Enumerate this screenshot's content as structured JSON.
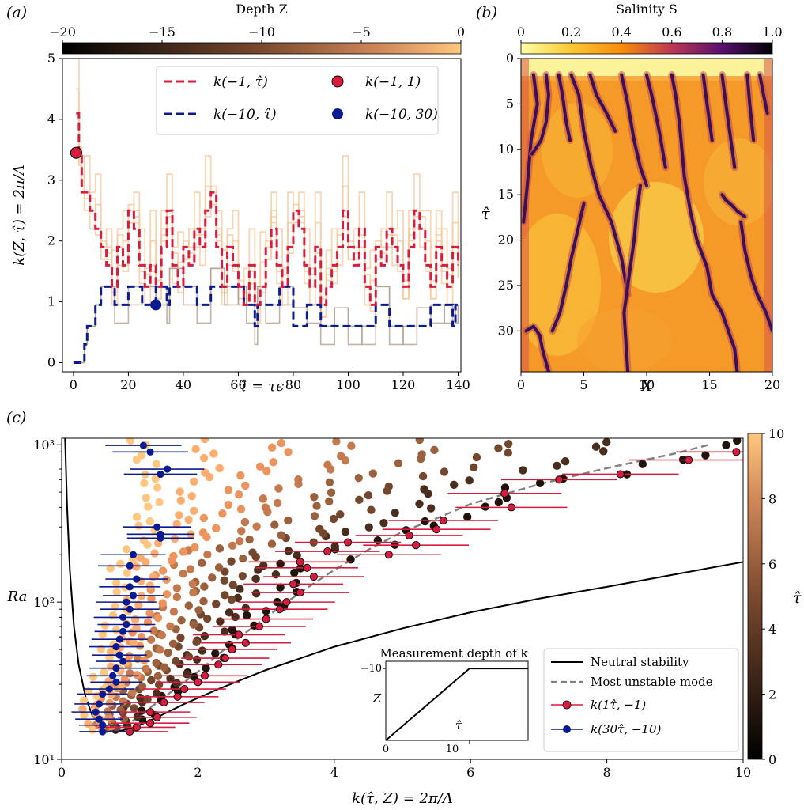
{
  "figure": {
    "panel_labels": {
      "a": "(a)",
      "b": "(b)",
      "c": "(c)"
    }
  },
  "colors": {
    "red": "#d81b3f",
    "blue": "#0b1b8f",
    "grey_dash": "#808080",
    "copper_dark": "#000000",
    "copper_light": "#ffc77f",
    "pale": "#f5c89a",
    "heat_light": "#fcffa4",
    "heat_mid1": "#f98c0a",
    "heat_mid2": "#bc3754",
    "heat_mid3": "#57106e",
    "heat_dark": "#000004"
  },
  "chart_data": [
    {
      "type": "line",
      "panel": "(a)",
      "title": "",
      "xlabel": "τ̂ = τϵ",
      "ylabel": "k(Z, τ̂) = 2π/Λ",
      "xlim": [
        -4,
        141
      ],
      "ylim": [
        -0.15,
        5
      ],
      "xticks": [
        0,
        20,
        40,
        60,
        80,
        100,
        120,
        140
      ],
      "yticks": [
        0,
        1,
        2,
        3,
        4,
        5
      ],
      "colorbar": {
        "label": "Depth Z",
        "ticks": [
          -20,
          -15,
          -10,
          -5,
          0
        ],
        "range": [
          -20,
          0
        ]
      },
      "legend": [
        {
          "label": "k(−1, τ̂)",
          "style": "red-dashed"
        },
        {
          "label": "k(−10, τ̂)",
          "style": "blue-dashed"
        },
        {
          "label": "k(−1, 1)",
          "style": "red-marker"
        },
        {
          "label": "k(−10, 30)",
          "style": "blue-marker"
        }
      ],
      "series": [
        {
          "name": "k(−1, τ̂)",
          "x": [
            1,
            2,
            3,
            4,
            6,
            8,
            10,
            12,
            14,
            16,
            18,
            20,
            22,
            24,
            26,
            28,
            30,
            32,
            34,
            36,
            38,
            40,
            42,
            44,
            46,
            48,
            50,
            52,
            54,
            56,
            58,
            60,
            62,
            64,
            66,
            68,
            70,
            72,
            74,
            76,
            78,
            80,
            82,
            84,
            86,
            88,
            90,
            92,
            94,
            96,
            98,
            100,
            102,
            104,
            106,
            108,
            110,
            112,
            114,
            116,
            118,
            120,
            122,
            124,
            126,
            128,
            130,
            132,
            134,
            136,
            138,
            140
          ],
          "y": [
            4.1,
            3.45,
            2.8,
            2.8,
            2.5,
            2.2,
            1.9,
            1.6,
            1.25,
            1.9,
            1.6,
            2.5,
            2.2,
            1.6,
            1.25,
            1.6,
            1.25,
            1.9,
            2.5,
            1.6,
            1.25,
            1.9,
            1.6,
            2.2,
            1.9,
            2.5,
            2.8,
            1.9,
            1.25,
            1.9,
            1.6,
            1.25,
            0.95,
            1.6,
            0.95,
            1.25,
            1.9,
            2.2,
            1.6,
            1.25,
            1.9,
            2.5,
            2.2,
            1.6,
            1.25,
            1.9,
            0.95,
            1.25,
            1.6,
            1.9,
            2.5,
            1.9,
            1.6,
            2.2,
            1.25,
            0.95,
            1.9,
            1.6,
            2.2,
            1.9,
            1.6,
            1.25,
            1.9,
            2.5,
            2.2,
            1.6,
            1.25,
            1.9,
            1.6,
            1.25,
            1.9,
            1.6
          ]
        },
        {
          "name": "k(−10, τ̂)",
          "x": [
            0,
            3,
            4,
            5,
            7,
            8,
            9,
            10,
            11,
            15,
            20,
            25,
            30,
            34,
            35,
            40,
            45,
            50,
            55,
            60,
            62,
            63,
            66,
            67,
            70,
            75,
            80,
            85,
            90,
            95,
            100,
            105,
            110,
            115,
            120,
            125,
            130,
            135,
            138,
            139,
            140
          ],
          "y": [
            0,
            0,
            0.3,
            0.6,
            0.6,
            0.95,
            0.95,
            1.25,
            1.25,
            0.95,
            1.25,
            0.95,
            1.25,
            0.95,
            1.25,
            1.25,
            0.95,
            1.25,
            1.25,
            1.25,
            0.95,
            0.95,
            0.6,
            0.95,
            0.95,
            1.25,
            0.6,
            0.95,
            0.6,
            0.6,
            0.6,
            0.6,
            0.95,
            0.6,
            0.6,
            0.6,
            0.95,
            0.95,
            0.6,
            0.95,
            0.95
          ]
        }
      ],
      "markers": [
        {
          "name": "k(−1, 1)",
          "x": 1,
          "y": 3.45
        },
        {
          "name": "k(−10, 30)",
          "x": 30,
          "y": 0.95
        }
      ]
    },
    {
      "type": "heatmap",
      "panel": "(b)",
      "title": "",
      "xlabel": "X",
      "ylabel": "τ̂",
      "xlim": [
        0,
        20
      ],
      "ylim": [
        0,
        34.5
      ],
      "xticks": [
        0,
        5,
        10,
        15,
        20
      ],
      "yticks": [
        0,
        5,
        10,
        15,
        20,
        25,
        30
      ],
      "colorbar": {
        "label": "Salinity S",
        "ticks": [
          "0",
          "0.2",
          "0.4",
          "0.6",
          "0.8",
          "1.0"
        ],
        "range": [
          0,
          1
        ]
      },
      "fingers": [
        {
          "x": [
            1.0,
            1.3,
            0.8,
            0.5,
            0.2
          ],
          "y": [
            1.8,
            5,
            9,
            14,
            18
          ]
        },
        {
          "x": [
            2.0,
            2.2,
            2.0,
            1.6,
            0.9
          ],
          "y": [
            1.8,
            4,
            7,
            9,
            10.5
          ]
        },
        {
          "x": [
            3.0,
            3.3,
            3.6,
            3.9
          ],
          "y": [
            1.8,
            4,
            7,
            9
          ]
        },
        {
          "x": [
            4.0,
            4.6,
            5.0,
            5.6,
            6.2,
            7.2,
            8.0,
            8.5
          ],
          "y": [
            1.8,
            4,
            8,
            12,
            15,
            18,
            22,
            26
          ]
        },
        {
          "x": [
            5.5,
            6.0,
            6.8,
            7.5
          ],
          "y": [
            1.8,
            4,
            6,
            8
          ]
        },
        {
          "x": [
            8.0,
            8.5,
            9.0,
            9.5,
            10.0
          ],
          "y": [
            1.8,
            5,
            9,
            12,
            14
          ]
        },
        {
          "x": [
            10.0,
            10.4,
            11.0,
            11.5
          ],
          "y": [
            1.8,
            4,
            8,
            12
          ]
        },
        {
          "x": [
            12.0,
            12.3,
            12.6,
            12.8,
            13.0,
            13.5,
            14.0,
            14.8,
            15.2,
            16.0,
            16.5,
            17.0,
            17.2
          ],
          "y": [
            1.8,
            4,
            7,
            10,
            13,
            17,
            20,
            23,
            26,
            28,
            30,
            32,
            34.5
          ]
        },
        {
          "x": [
            14.5,
            14.8,
            15.2
          ],
          "y": [
            1.8,
            5,
            9
          ]
        },
        {
          "x": [
            16.0,
            16.3,
            16.7,
            17.0
          ],
          "y": [
            1.8,
            5,
            9,
            12
          ]
        },
        {
          "x": [
            18.0,
            18.2,
            18.5
          ],
          "y": [
            1.8,
            5,
            9
          ]
        },
        {
          "x": [
            19.0,
            19.3,
            19.6
          ],
          "y": [
            1.8,
            4,
            6
          ]
        },
        {
          "x": [
            9.5,
            9.2,
            9.0,
            8.8,
            8.5,
            8.2,
            8.5
          ],
          "y": [
            14,
            17,
            20,
            22,
            25,
            28,
            34.5
          ]
        },
        {
          "x": [
            5.0,
            4.5,
            4.0,
            3.6,
            3.1,
            2.5
          ],
          "y": [
            16,
            19,
            22,
            25,
            28,
            30
          ]
        },
        {
          "x": [
            0.4,
            1.0,
            1.5,
            1.7,
            2.2
          ],
          "y": [
            30,
            29.5,
            30.5,
            32,
            34.5
          ]
        },
        {
          "x": [
            17.5,
            17.8,
            18.3,
            18.8,
            19.5,
            20.0
          ],
          "y": [
            18,
            21,
            24,
            26,
            28,
            30
          ]
        },
        {
          "x": [
            16.0,
            16.3,
            16.8,
            17.2,
            17.8
          ],
          "y": [
            15,
            15.6,
            16.2,
            16.8,
            17.4
          ]
        }
      ]
    },
    {
      "type": "scatter",
      "panel": "(c)",
      "title": "",
      "xlabel": "k(τ̂, Z) = 2π/Λ",
      "ylabel": "Ra",
      "xlim": [
        0,
        10
      ],
      "ylim": [
        10,
        1100
      ],
      "yscale": "log",
      "xticks": [
        0,
        2,
        4,
        6,
        8,
        10
      ],
      "yticks": [
        10,
        100,
        1000
      ],
      "ytick_labels": [
        "10¹",
        "10²",
        "10³"
      ],
      "colorbar": {
        "label": "τ̂",
        "ticks": [
          0,
          2,
          4,
          6,
          8,
          10
        ],
        "range": [
          0,
          10
        ]
      },
      "legend": [
        {
          "label": "Neutral stability",
          "style": "black-solid"
        },
        {
          "label": "Most unstable mode",
          "style": "grey-dashed"
        },
        {
          "label": "k(1τ̂, −1)",
          "style": "red-errorbar"
        },
        {
          "label": "k(30τ̂, −10)",
          "style": "blue-errorbar"
        }
      ],
      "neutral_stability": {
        "name": "Neutral stability",
        "x": [
          0.05,
          0.08,
          0.12,
          0.18,
          0.25,
          0.35,
          0.45,
          0.6,
          0.75,
          0.9,
          1.1,
          1.4,
          1.8,
          2.3,
          3.0,
          4.0,
          5.0,
          6.0,
          7.0,
          8.0,
          9.0,
          10.0
        ],
        "y": [
          1100,
          400,
          160,
          70,
          40,
          25,
          19,
          16,
          15,
          15.3,
          16.2,
          18.5,
          22.5,
          28,
          37,
          52,
          68,
          86,
          105,
          125,
          150,
          180
        ]
      },
      "most_unstable_mode": {
        "name": "Most unstable mode",
        "x": [
          0.75,
          1.0,
          1.4,
          2.0,
          2.5,
          3.0,
          3.5,
          4.0,
          4.5,
          5.0,
          5.5,
          6.0,
          7.0,
          8.0,
          9.0,
          9.5
        ],
        "y": [
          15,
          17,
          23,
          36,
          55,
          80,
          115,
          160,
          215,
          280,
          340,
          420,
          560,
          710,
          880,
          1000
        ]
      },
      "measurement_red": {
        "name": "k(1τ̂, −1)",
        "points": [
          [
            1.0,
            15
          ],
          [
            1.1,
            16
          ],
          [
            1.3,
            17
          ],
          [
            1.4,
            18.5
          ],
          [
            1.3,
            20
          ],
          [
            1.5,
            23
          ],
          [
            1.7,
            25
          ],
          [
            1.8,
            28
          ],
          [
            2.0,
            31
          ],
          [
            2.1,
            34
          ],
          [
            2.3,
            40
          ],
          [
            2.4,
            44
          ],
          [
            2.5,
            50
          ],
          [
            2.7,
            55
          ],
          [
            2.6,
            62
          ],
          [
            2.9,
            70
          ],
          [
            3.0,
            78
          ],
          [
            3.2,
            90
          ],
          [
            3.3,
            100
          ],
          [
            3.5,
            115
          ],
          [
            3.4,
            130
          ],
          [
            3.7,
            145
          ],
          [
            3.6,
            165
          ],
          [
            3.5,
            180
          ],
          [
            3.9,
            210
          ],
          [
            4.2,
            240
          ],
          [
            4.8,
            200
          ],
          [
            5.2,
            230
          ],
          [
            5.1,
            265
          ],
          [
            5.5,
            290
          ],
          [
            5.6,
            330
          ],
          [
            6.6,
            400
          ],
          [
            6.5,
            490
          ],
          [
            7.3,
            600
          ],
          [
            8.2,
            650
          ],
          [
            9.2,
            800
          ],
          [
            9.9,
            900
          ]
        ]
      },
      "measurement_blue": {
        "name": "k(30τ̂, −10)",
        "points": [
          [
            0.6,
            15
          ],
          [
            0.6,
            16.5
          ],
          [
            0.55,
            18
          ],
          [
            0.5,
            20
          ],
          [
            0.55,
            22.5
          ],
          [
            0.6,
            26
          ],
          [
            0.7,
            28
          ],
          [
            0.8,
            31
          ],
          [
            0.75,
            34
          ],
          [
            0.8,
            38
          ],
          [
            0.9,
            42
          ],
          [
            0.85,
            46
          ],
          [
            0.8,
            52
          ],
          [
            0.85,
            58
          ],
          [
            0.9,
            65
          ],
          [
            0.95,
            72
          ],
          [
            0.9,
            80
          ],
          [
            1.0,
            90
          ],
          [
            0.95,
            100
          ],
          [
            1.05,
            110
          ],
          [
            1.0,
            125
          ],
          [
            1.1,
            140
          ],
          [
            1.0,
            170
          ],
          [
            1.05,
            200
          ],
          [
            1.45,
            255
          ],
          [
            1.45,
            270
          ],
          [
            1.4,
            300
          ],
          [
            1.45,
            650
          ],
          [
            1.55,
            700
          ],
          [
            1.3,
            900
          ],
          [
            1.2,
            990
          ]
        ]
      },
      "inset": {
        "title": "Measurement depth of k",
        "xlabel": "τ̂",
        "ylabel": "Z",
        "xtick": "10",
        "ytick": "−10",
        "origin_label": "0",
        "x": [
          0,
          10,
          17
        ],
        "y": [
          0,
          -10,
          -10
        ]
      }
    }
  ]
}
